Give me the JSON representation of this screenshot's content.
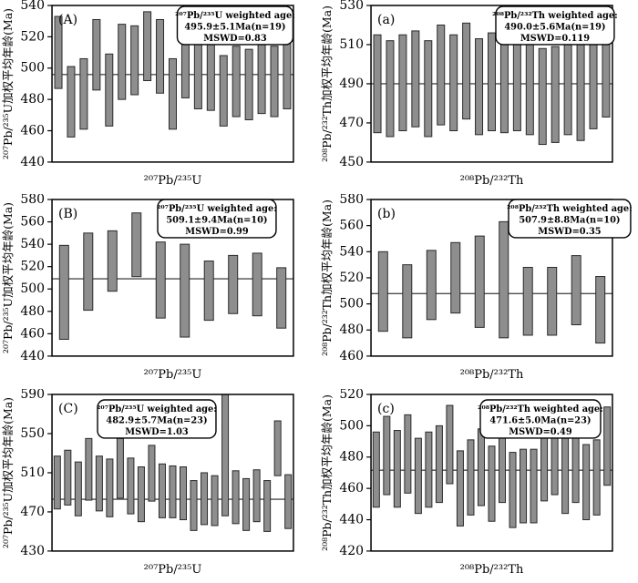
{
  "figure": {
    "background": "#ffffff",
    "bar_fill": "#8e8e8e",
    "bar_stroke": "#2b2b2b",
    "axis_color": "#000000",
    "mean_line_color": "#4d4d4d"
  },
  "chart_data": [
    {
      "type": "bar",
      "panel": "(A)",
      "title_lines": [
        "²⁰⁷Pb/²³⁵U weighted age:",
        "495.9±5.1Ma(n=19)",
        "MSWD=0.83"
      ],
      "weighted_age": 495.9,
      "uncertainty": 5.1,
      "n": 19,
      "mswd": 0.83,
      "ylabel": "²⁰⁷Pb/²³⁵U加权平均年龄(Ma)",
      "xlabel": "²⁰⁷Pb/²³⁵U",
      "ylim": [
        440,
        540
      ],
      "yticks": [
        440,
        460,
        480,
        500,
        520,
        540
      ],
      "mean": 495.9,
      "grid": false,
      "ann_box": {
        "cx": 258,
        "y": 7,
        "w": 127
      },
      "bars": [
        [
          487,
          533
        ],
        [
          456,
          501
        ],
        [
          461,
          506
        ],
        [
          486,
          531
        ],
        [
          463,
          509
        ],
        [
          480,
          528
        ],
        [
          483,
          527
        ],
        [
          492,
          536
        ],
        [
          484,
          531
        ],
        [
          461,
          506
        ],
        [
          481,
          528
        ],
        [
          474,
          518
        ],
        [
          473,
          520
        ],
        [
          463,
          508
        ],
        [
          469,
          514
        ],
        [
          467,
          512
        ],
        [
          471,
          515
        ],
        [
          469,
          514
        ],
        [
          474,
          518
        ]
      ]
    },
    {
      "type": "bar",
      "panel": "(a)",
      "title_lines": [
        "²⁰⁸Pb/²³²Th weighted age:",
        "490.0±5.6Ma(n=19)",
        "MSWD=0.119"
      ],
      "weighted_age": 490.0,
      "uncertainty": 5.6,
      "n": 19,
      "mswd": 0.119,
      "ylabel": "²⁰⁸Pb/²³²Th加权平均年龄(Ma)",
      "xlabel": "²⁰⁸Pb/²³²Th",
      "ylim": [
        450,
        530
      ],
      "yticks": [
        450,
        470,
        490,
        510,
        530
      ],
      "mean": 490.0,
      "grid": false,
      "ann_box": {
        "cx": 259,
        "y": 7,
        "w": 130
      },
      "bars": [
        [
          465,
          515
        ],
        [
          463,
          512
        ],
        [
          466,
          515
        ],
        [
          468,
          517
        ],
        [
          463,
          512
        ],
        [
          469,
          520
        ],
        [
          466,
          515
        ],
        [
          472,
          521
        ],
        [
          464,
          513
        ],
        [
          466,
          516
        ],
        [
          465,
          514
        ],
        [
          466,
          515
        ],
        [
          464,
          513
        ],
        [
          459,
          508
        ],
        [
          460,
          509
        ],
        [
          464,
          513
        ],
        [
          461,
          510
        ],
        [
          467,
          526
        ],
        [
          473,
          529
        ]
      ]
    },
    {
      "type": "bar",
      "panel": "(B)",
      "title_lines": [
        "²⁰⁷Pb/²³⁵U weighted age:",
        "509.1±9.4Ma(n=10)",
        "MSWD=0.99"
      ],
      "weighted_age": 509.1,
      "uncertainty": 9.4,
      "n": 10,
      "mswd": 0.99,
      "ylabel": "²⁰⁷Pb/²³⁵U加权平均年龄(Ma)",
      "xlabel": "²⁰⁷Pb/²³⁵U",
      "ylim": [
        440,
        580
      ],
      "yticks": [
        440,
        460,
        480,
        500,
        520,
        540,
        560,
        580
      ],
      "mean": 509.1,
      "grid": false,
      "ann_box": {
        "cx": 238,
        "y": 6,
        "w": 130
      },
      "bars": [
        [
          455,
          539
        ],
        [
          481,
          550
        ],
        [
          498,
          552
        ],
        [
          511,
          568
        ],
        [
          474,
          542
        ],
        [
          457,
          540
        ],
        [
          472,
          525
        ],
        [
          478,
          530
        ],
        [
          476,
          532
        ],
        [
          465,
          519
        ]
      ]
    },
    {
      "type": "bar",
      "panel": "(b)",
      "title_lines": [
        "²⁰⁸Pb/²³²Th weighted age:",
        "507.9±8.8Ma(n=10)",
        "MSWD=0.35"
      ],
      "weighted_age": 507.9,
      "uncertainty": 8.8,
      "n": 10,
      "mswd": 0.35,
      "ylabel": "²⁰⁸Pb/²³²Th加权平均年龄(Ma)",
      "xlabel": "²⁰⁸Pb/²³²Th",
      "ylim": [
        460,
        580
      ],
      "yticks": [
        460,
        480,
        500,
        520,
        540,
        560,
        580
      ],
      "mean": 507.9,
      "grid": false,
      "ann_box": {
        "cx": 275,
        "y": 6,
        "w": 134
      },
      "bars": [
        [
          479,
          540
        ],
        [
          474,
          530
        ],
        [
          488,
          541
        ],
        [
          493,
          547
        ],
        [
          482,
          552
        ],
        [
          474,
          563
        ],
        [
          476,
          528
        ],
        [
          476,
          528
        ],
        [
          484,
          537
        ],
        [
          470,
          521
        ]
      ]
    },
    {
      "type": "bar",
      "panel": "(C)",
      "title_lines": [
        "²⁰⁷Pb/²³⁵U weighted age:",
        "482.9±5.7Ma(n=23)",
        "MSWD=1.03"
      ],
      "weighted_age": 482.9,
      "uncertainty": 5.7,
      "n": 23,
      "mswd": 1.03,
      "ylabel": "²⁰⁷Pb/²³⁵U加权平均年龄(Ma)",
      "xlabel": "²⁰⁷Pb/²³⁵U",
      "ylim": [
        430,
        590
      ],
      "yticks": [
        430,
        470,
        510,
        550,
        590
      ],
      "mean": 482.9,
      "grid": false,
      "ann_box": {
        "cx": 172,
        "y": 12,
        "w": 130
      },
      "bars": [
        [
          473,
          527
        ],
        [
          477,
          533
        ],
        [
          466,
          521
        ],
        [
          482,
          545
        ],
        [
          471,
          527
        ],
        [
          465,
          524
        ],
        [
          484,
          545
        ],
        [
          468,
          525
        ],
        [
          460,
          516
        ],
        [
          481,
          538
        ],
        [
          464,
          519
        ],
        [
          464,
          517
        ],
        [
          462,
          516
        ],
        [
          451,
          502
        ],
        [
          457,
          510
        ],
        [
          456,
          507
        ],
        [
          466,
          590
        ],
        [
          458,
          512
        ],
        [
          451,
          504
        ],
        [
          460,
          513
        ],
        [
          450,
          502
        ],
        [
          507,
          563
        ],
        [
          453,
          508
        ]
      ]
    },
    {
      "type": "bar",
      "panel": "(c)",
      "title_lines": [
        "²⁰⁸Pb/²³²Th weighted age:",
        "471.6±5.0Ma(n=23)",
        "MSWD=0.49"
      ],
      "weighted_age": 471.6,
      "uncertainty": 5.0,
      "n": 23,
      "mswd": 0.49,
      "ylabel": "²⁰⁸Pb/²³²Th加权平均年龄(Ma)",
      "xlabel": "²⁰⁸Pb/²³²Th",
      "ylim": [
        420,
        520
      ],
      "yticks": [
        420,
        440,
        460,
        480,
        500,
        520
      ],
      "mean": 471.6,
      "grid": false,
      "ann_box": {
        "cx": 243,
        "y": 12,
        "w": 132
      },
      "bars": [
        [
          448,
          496
        ],
        [
          456,
          506
        ],
        [
          448,
          497
        ],
        [
          457,
          507
        ],
        [
          444,
          492
        ],
        [
          448,
          496
        ],
        [
          451,
          500
        ],
        [
          463,
          513
        ],
        [
          436,
          484
        ],
        [
          443,
          491
        ],
        [
          449,
          498
        ],
        [
          439,
          487
        ],
        [
          451,
          500
        ],
        [
          435,
          483
        ],
        [
          438,
          485
        ],
        [
          438,
          485
        ],
        [
          452,
          501
        ],
        [
          456,
          506
        ],
        [
          444,
          492
        ],
        [
          451,
          500
        ],
        [
          440,
          488
        ],
        [
          443,
          491
        ],
        [
          462,
          512
        ]
      ]
    }
  ]
}
